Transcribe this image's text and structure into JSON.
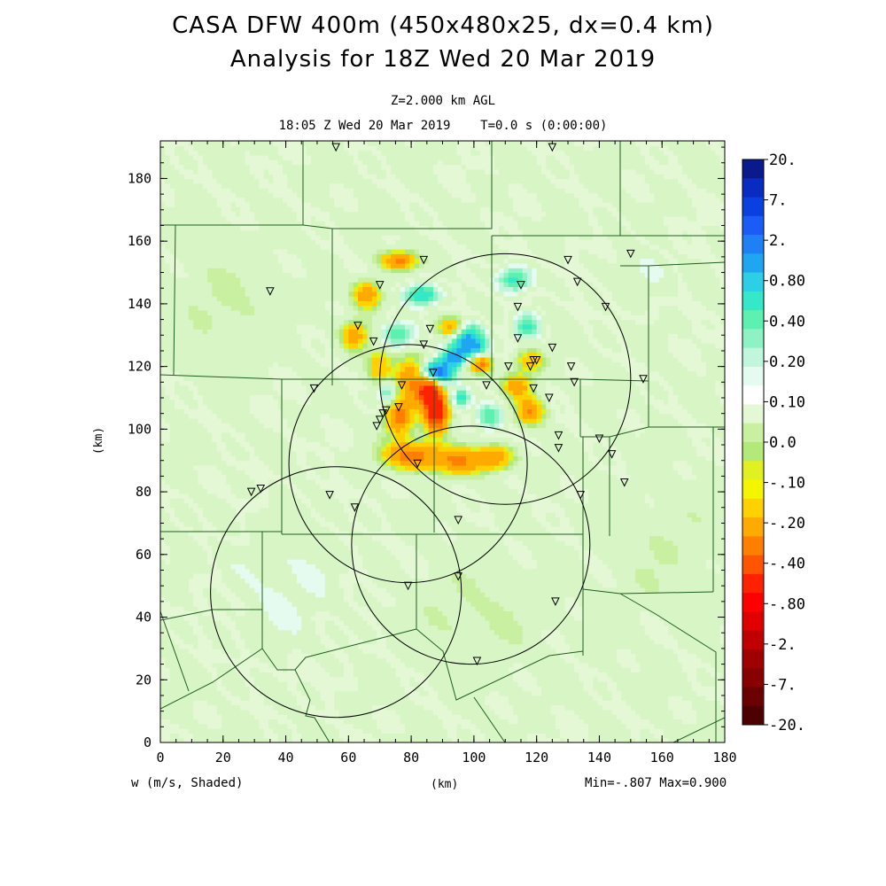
{
  "header": {
    "title_line1": "CASA DFW 400m (450x480x25, dx=0.4 km)",
    "title_line2": "Analysis for 18Z Wed 20 Mar 2019",
    "level": "Z=2.000 km AGL",
    "time": "18:05 Z Wed 20 Mar 2019    T=0.0 s (0:00:00)"
  },
  "footer": {
    "variable": "w (m/s, Shaded)",
    "xunit": "(km)",
    "minmax": "Min=-.807 Max=0.900"
  },
  "colors": {
    "background_field": "#d8f5c6",
    "county_lines": "#1f5f1f",
    "ring": "#000000"
  },
  "chart_data": {
    "type": "heatmap",
    "xlabel": "(km)",
    "ylabel": "(km)",
    "xlim": [
      0,
      180
    ],
    "ylim": [
      0,
      192
    ],
    "xticks": [
      "0",
      "20",
      "40",
      "60",
      "80",
      "100",
      "120",
      "140",
      "160",
      "180"
    ],
    "yticks": [
      "0",
      "20",
      "40",
      "60",
      "80",
      "100",
      "120",
      "140",
      "160",
      "180"
    ],
    "colorbar": {
      "labels": [
        "20.",
        "7.",
        "2.",
        "0.80",
        "0.40",
        "0.20",
        "0.10",
        "0.0",
        "-.10",
        "-.20",
        "-.40",
        "-.80",
        "-2.",
        "-7.",
        "-20."
      ],
      "colors": [
        "#0a1a8c",
        "#0a2bc0",
        "#0a3fe0",
        "#1a5cf5",
        "#1f7ff5",
        "#1fa6f0",
        "#2ccfe6",
        "#35e8c8",
        "#5ef0b0",
        "#8ff2c4",
        "#c2f6dc",
        "#e6fbf0",
        "#ffffff",
        "#e5f8d5",
        "#c8f0a0",
        "#b3e978",
        "#e0f020",
        "#f5f500",
        "#ffd100",
        "#ffaa00",
        "#ff8000",
        "#ff5500",
        "#ff2200",
        "#ff0000",
        "#e00000",
        "#c00000",
        "#a00000",
        "#880000",
        "#6a0000",
        "#4c0000"
      ]
    },
    "radars": [
      {
        "x": 110,
        "y": 116,
        "r": 40
      },
      {
        "x": 79,
        "y": 89,
        "r": 38
      },
      {
        "x": 99,
        "y": 63,
        "r": 38
      },
      {
        "x": 56,
        "y": 48,
        "r": 40
      }
    ],
    "stations": [
      [
        56,
        190
      ],
      [
        125,
        190
      ],
      [
        150,
        156
      ],
      [
        130,
        154
      ],
      [
        84,
        154
      ],
      [
        70,
        146
      ],
      [
        35,
        144
      ],
      [
        115,
        146
      ],
      [
        133,
        147
      ],
      [
        142,
        139
      ],
      [
        114,
        139
      ],
      [
        63,
        133
      ],
      [
        86,
        132
      ],
      [
        68,
        128
      ],
      [
        84,
        127
      ],
      [
        114,
        129
      ],
      [
        125,
        126
      ],
      [
        119,
        122
      ],
      [
        120,
        122
      ],
      [
        118,
        120
      ],
      [
        111,
        120
      ],
      [
        131,
        120
      ],
      [
        87,
        118
      ],
      [
        154,
        116
      ],
      [
        132,
        115
      ],
      [
        49,
        113
      ],
      [
        77,
        114
      ],
      [
        104,
        114
      ],
      [
        119,
        113
      ],
      [
        124,
        110
      ],
      [
        71,
        105
      ],
      [
        70,
        103
      ],
      [
        76,
        107
      ],
      [
        72,
        106
      ],
      [
        69,
        101
      ],
      [
        127,
        98
      ],
      [
        140,
        97
      ],
      [
        127,
        94
      ],
      [
        144,
        92
      ],
      [
        82,
        89
      ],
      [
        148,
        83
      ],
      [
        29,
        80
      ],
      [
        32,
        81
      ],
      [
        54,
        79
      ],
      [
        134,
        79
      ],
      [
        62,
        75
      ],
      [
        95,
        71
      ],
      [
        79,
        50
      ],
      [
        95,
        53
      ],
      [
        126,
        45
      ],
      [
        101,
        26
      ]
    ],
    "anomalies": [
      {
        "x": 88,
        "y": 118,
        "v": 0.8,
        "sx": 3.5,
        "sy": 2.6
      },
      {
        "x": 96,
        "y": 130,
        "v": 0.55,
        "sx": 4,
        "sy": 3
      },
      {
        "x": 86,
        "y": 112,
        "v": -0.9,
        "sx": 2.6,
        "sy": 3.5
      },
      {
        "x": 94,
        "y": 123,
        "v": 0.5,
        "sx": 2.5,
        "sy": 2
      },
      {
        "x": 100,
        "y": 126,
        "v": 0.4,
        "sx": 3,
        "sy": 2.5
      },
      {
        "x": 88,
        "y": 105,
        "v": -0.85,
        "sx": 2.6,
        "sy": 4
      },
      {
        "x": 80,
        "y": 116,
        "v": -0.45,
        "sx": 4,
        "sy": 5
      },
      {
        "x": 93,
        "y": 132,
        "v": -0.6,
        "sx": 3,
        "sy": 2.5
      },
      {
        "x": 102,
        "y": 121,
        "v": -0.5,
        "sx": 2.5,
        "sy": 2
      },
      {
        "x": 76,
        "y": 104,
        "v": -0.55,
        "sx": 3,
        "sy": 4
      },
      {
        "x": 80,
        "y": 92,
        "v": -0.55,
        "sx": 6,
        "sy": 3
      },
      {
        "x": 95,
        "y": 90,
        "v": -0.45,
        "sx": 6,
        "sy": 3
      },
      {
        "x": 107,
        "y": 91,
        "v": -0.4,
        "sx": 4,
        "sy": 2.5
      },
      {
        "x": 118,
        "y": 106,
        "v": -0.45,
        "sx": 3,
        "sy": 3
      },
      {
        "x": 114,
        "y": 114,
        "v": -0.4,
        "sx": 3,
        "sy": 2.5
      },
      {
        "x": 76,
        "y": 154,
        "v": -0.5,
        "sx": 4,
        "sy": 2
      },
      {
        "x": 66,
        "y": 143,
        "v": -0.45,
        "sx": 3,
        "sy": 3
      },
      {
        "x": 62,
        "y": 130,
        "v": -0.4,
        "sx": 3,
        "sy": 3
      },
      {
        "x": 70,
        "y": 120,
        "v": -0.3,
        "sx": 2.5,
        "sy": 4
      },
      {
        "x": 83,
        "y": 143,
        "v": 0.35,
        "sx": 4,
        "sy": 2.5
      },
      {
        "x": 113,
        "y": 148,
        "v": 0.3,
        "sx": 4,
        "sy": 3
      },
      {
        "x": 117,
        "y": 133,
        "v": 0.25,
        "sx": 3,
        "sy": 3
      },
      {
        "x": 75,
        "y": 130,
        "v": 0.25,
        "sx": 4,
        "sy": 3
      },
      {
        "x": 73,
        "y": 112,
        "v": 0.3,
        "sx": 2.5,
        "sy": 3
      },
      {
        "x": 105,
        "y": 104,
        "v": 0.25,
        "sx": 3,
        "sy": 3
      },
      {
        "x": 96,
        "y": 110,
        "v": 0.3,
        "sx": 2,
        "sy": 2
      },
      {
        "x": 118,
        "y": 122,
        "v": -0.3,
        "sx": 3,
        "sy": 2.5
      },
      {
        "x": 40,
        "y": 50,
        "v": 0.07,
        "sx": 14,
        "sy": 18
      },
      {
        "x": 150,
        "y": 150,
        "v": 0.06,
        "sx": 10,
        "sy": 8
      },
      {
        "x": 20,
        "y": 140,
        "v": -0.06,
        "sx": 12,
        "sy": 12
      },
      {
        "x": 100,
        "y": 40,
        "v": -0.06,
        "sx": 15,
        "sy": 12
      },
      {
        "x": 160,
        "y": 60,
        "v": -0.05,
        "sx": 12,
        "sy": 15
      }
    ]
  }
}
